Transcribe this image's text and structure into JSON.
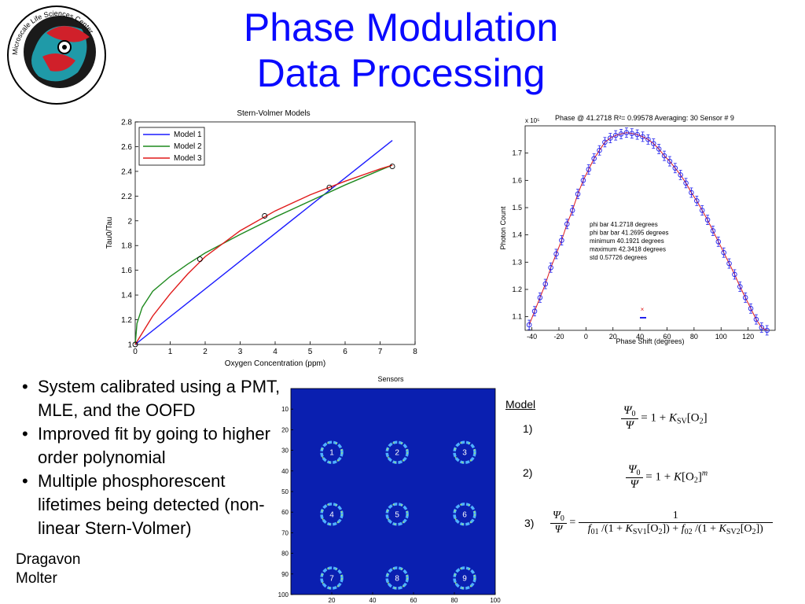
{
  "slide": {
    "title_line1": "Phase Modulation",
    "title_line2": "Data Processing",
    "logo_text": "Microscale Life Sciences Center"
  },
  "bullets": [
    "System calibrated using a PMT, MLE, and the OOFD",
    "Improved fit by going to higher order polynomial",
    "Multiple phosphorescent lifetimes being detected (non-linear Stern-Volmer)"
  ],
  "authors": [
    "Dragavon",
    "Molter"
  ],
  "models": {
    "label": "Model",
    "numbers": [
      "1)",
      "2)",
      "3)"
    ]
  },
  "chart_data": [
    {
      "type": "line",
      "title": "Stern-Volmer Models",
      "xlabel": "Oxygen Concentration (ppm)",
      "ylabel": "Tau0/Tau",
      "xlim": [
        0,
        8
      ],
      "ylim": [
        1,
        2.8
      ],
      "xticks": [
        "0",
        "1",
        "2",
        "3",
        "4",
        "5",
        "6",
        "7",
        "8"
      ],
      "yticks": [
        "1",
        "1.2",
        "1.4",
        "1.6",
        "1.8",
        "2",
        "2.2",
        "2.4",
        "2.6",
        "2.8"
      ],
      "legend_position": "top-left",
      "series": [
        {
          "name": "Model 1",
          "color": "#1a1aff",
          "x": [
            0,
            7.35
          ],
          "y": [
            1,
            2.65
          ]
        },
        {
          "name": "Model 2",
          "color": "#1f8a1f",
          "x": [
            0,
            0.05,
            0.2,
            0.5,
            1,
            1.5,
            2,
            3,
            4,
            5,
            6,
            7,
            7.35
          ],
          "y": [
            1,
            1.17,
            1.3,
            1.43,
            1.55,
            1.65,
            1.74,
            1.89,
            2.03,
            2.16,
            2.29,
            2.41,
            2.45
          ]
        },
        {
          "name": "Model 3",
          "color": "#e01a1a",
          "x": [
            0,
            0.5,
            1,
            1.5,
            2,
            3,
            4,
            5,
            6,
            7,
            7.35
          ],
          "y": [
            1,
            1.23,
            1.41,
            1.57,
            1.71,
            1.92,
            2.08,
            2.21,
            2.32,
            2.42,
            2.45
          ]
        }
      ],
      "points": {
        "x": [
          0,
          1.85,
          3.7,
          5.55,
          7.35
        ],
        "y": [
          1,
          1.69,
          2.04,
          2.27,
          2.44
        ]
      }
    },
    {
      "type": "scatter",
      "title": "Phase @ 41.2718 R²= 0.99578 Averaging: 30 Sensor # 9",
      "scale_label": "x 10⁵",
      "xlabel": "Phase Shift (degrees)",
      "ylabel": "Photon Count",
      "xlim": [
        -45,
        140
      ],
      "ylim": [
        1.05,
        1.8
      ],
      "xticks": [
        "-40",
        "-20",
        "0",
        "20",
        "40",
        "60",
        "80",
        "100",
        "120"
      ],
      "yticks": [
        "1.1",
        "1.2",
        "1.3",
        "1.4",
        "1.5",
        "1.6",
        "1.7"
      ],
      "annotations": [
        "phi bar 41.2718 degrees",
        "phi bar bar 41.2695 degrees",
        "minimum 40.1921 degrees",
        "maximum 42.3418 degrees",
        "std 0.57726 degrees"
      ],
      "fit_color": "#e01a1a",
      "point_color": "#2222ee",
      "x": [
        -42,
        -38,
        -34,
        -30,
        -26,
        -22,
        -18,
        -14,
        -10,
        -6,
        -2,
        2,
        6,
        10,
        14,
        18,
        22,
        26,
        30,
        34,
        38,
        42,
        46,
        50,
        54,
        58,
        62,
        66,
        70,
        74,
        78,
        82,
        86,
        90,
        94,
        98,
        102,
        106,
        110,
        114,
        118,
        122,
        126,
        130,
        134
      ],
      "y": [
        1.07,
        1.12,
        1.17,
        1.22,
        1.28,
        1.33,
        1.38,
        1.44,
        1.49,
        1.55,
        1.6,
        1.64,
        1.68,
        1.71,
        1.74,
        1.755,
        1.765,
        1.77,
        1.775,
        1.772,
        1.768,
        1.76,
        1.75,
        1.735,
        1.715,
        1.69,
        1.67,
        1.645,
        1.62,
        1.59,
        1.555,
        1.525,
        1.49,
        1.455,
        1.415,
        1.375,
        1.335,
        1.295,
        1.255,
        1.21,
        1.17,
        1.13,
        1.09,
        1.06,
        1.05
      ]
    },
    {
      "type": "heatmap",
      "title": "Sensors",
      "xlim": [
        0,
        100
      ],
      "ylim": [
        0,
        100
      ],
      "xticks": [
        "20",
        "40",
        "60",
        "80",
        "100"
      ],
      "yticks": [
        "10",
        "20",
        "30",
        "40",
        "50",
        "60",
        "70",
        "80",
        "90",
        "100"
      ],
      "background": "#0a1fb0",
      "sensor_labels": [
        "1",
        "2",
        "3",
        "4",
        "5",
        "6",
        "7",
        "8",
        "9"
      ],
      "sensor_centers": [
        [
          20,
          31
        ],
        [
          52,
          31
        ],
        [
          85,
          31
        ],
        [
          20,
          61
        ],
        [
          52,
          61
        ],
        [
          85,
          61
        ],
        [
          20,
          92
        ],
        [
          52,
          92
        ],
        [
          85,
          92
        ]
      ]
    }
  ]
}
